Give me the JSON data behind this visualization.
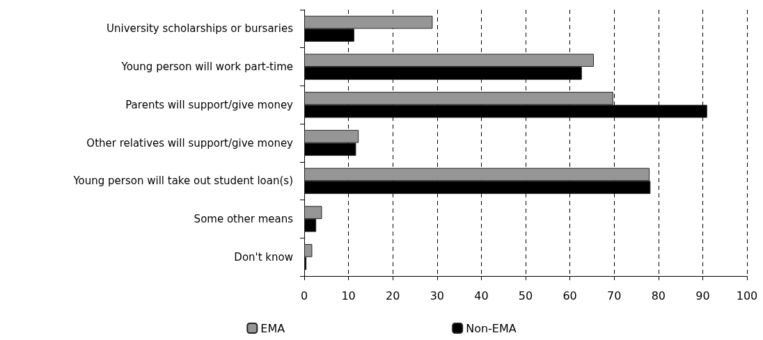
{
  "chart_data": {
    "type": "bar",
    "orientation": "horizontal",
    "categories": [
      "University scholarships or bursaries",
      "Young person will work part-time",
      "Parents will support/give money",
      "Other relatives will support/give money",
      "Young person will take out student loan(s)",
      "Some other means",
      "Don't know"
    ],
    "series": [
      {
        "name": "EMA",
        "color": "#969696",
        "values": [
          29,
          65.4,
          69.8,
          12.3,
          78,
          4,
          1.8
        ]
      },
      {
        "name": "Non-EMA",
        "color": "#000000",
        "values": [
          11.3,
          62.7,
          91,
          11.7,
          78.2,
          2.7,
          0.5
        ]
      }
    ],
    "xlim": [
      0,
      100
    ],
    "xticks": [
      0,
      10,
      20,
      30,
      40,
      50,
      60,
      70,
      80,
      90,
      100
    ],
    "grid": "x",
    "legend": "bottom"
  }
}
